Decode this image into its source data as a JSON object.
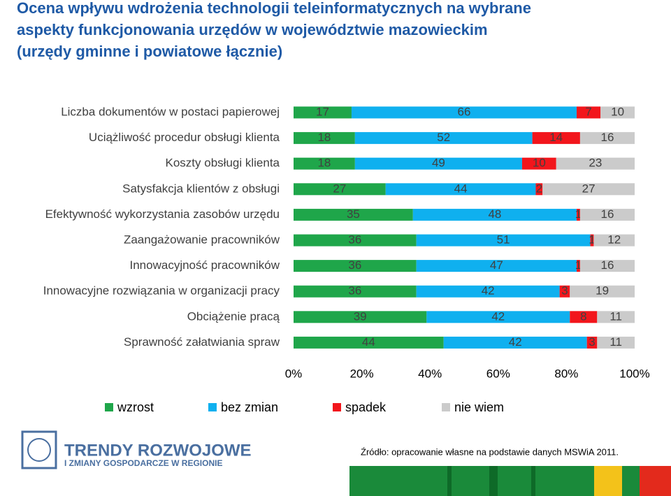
{
  "chart_data": {
    "type": "stacked-bar-horizontal",
    "title": [
      "Ocena wpływu wdrożenia technologii teleinformatycznych na wybrane",
      "aspekty funkcjonowania urzędów  w województwie mazowieckim",
      "(urzędy gminne i powiatowe łącznie)"
    ],
    "categories": [
      "Liczba dokumentów w postaci papierowej",
      "Uciążliwość procedur obsługi klienta",
      "Koszty obsługi klienta",
      "Satysfakcja klientów z obsługi",
      "Efektywność wykorzystania zasobów urzędu",
      "Zaangażowanie pracowników",
      "Innowacyjność pracowników",
      "Innowacyjne rozwiązania w organizacji pracy",
      "Obciążenie pracą",
      "Sprawność załatwiania spraw"
    ],
    "series": [
      {
        "name": "wzrost",
        "color": "#1fa64a",
        "values": [
          17,
          18,
          18,
          27,
          35,
          36,
          36,
          36,
          39,
          44
        ]
      },
      {
        "name": "bez zmian",
        "color": "#0fb0ef",
        "values": [
          66,
          52,
          49,
          44,
          48,
          51,
          47,
          42,
          42,
          42
        ]
      },
      {
        "name": "spadek",
        "color": "#f2161c",
        "values": [
          7,
          14,
          10,
          2,
          1,
          1,
          1,
          3,
          8,
          3
        ]
      },
      {
        "name": "nie wiem",
        "color": "#cbcbcb",
        "values": [
          10,
          16,
          23,
          27,
          16,
          12,
          16,
          19,
          11,
          11
        ]
      }
    ],
    "xlim": [
      0,
      100
    ],
    "xticks": [
      {
        "value": 0,
        "label": "0%"
      },
      {
        "value": 20,
        "label": "20%"
      },
      {
        "value": 40,
        "label": "40%"
      },
      {
        "value": 60,
        "label": "60%"
      },
      {
        "value": 80,
        "label": "80%"
      },
      {
        "value": 100,
        "label": "100%"
      }
    ],
    "legend": "bottom"
  },
  "footer": {
    "logo_line1": "TRENDY ROZWOJOWE",
    "logo_line2": "I ZMIANY GOSPODARCZE W REGIONIE",
    "source": "Źródło: opracowanie własne na podstawie danych MSWiA 2011."
  }
}
